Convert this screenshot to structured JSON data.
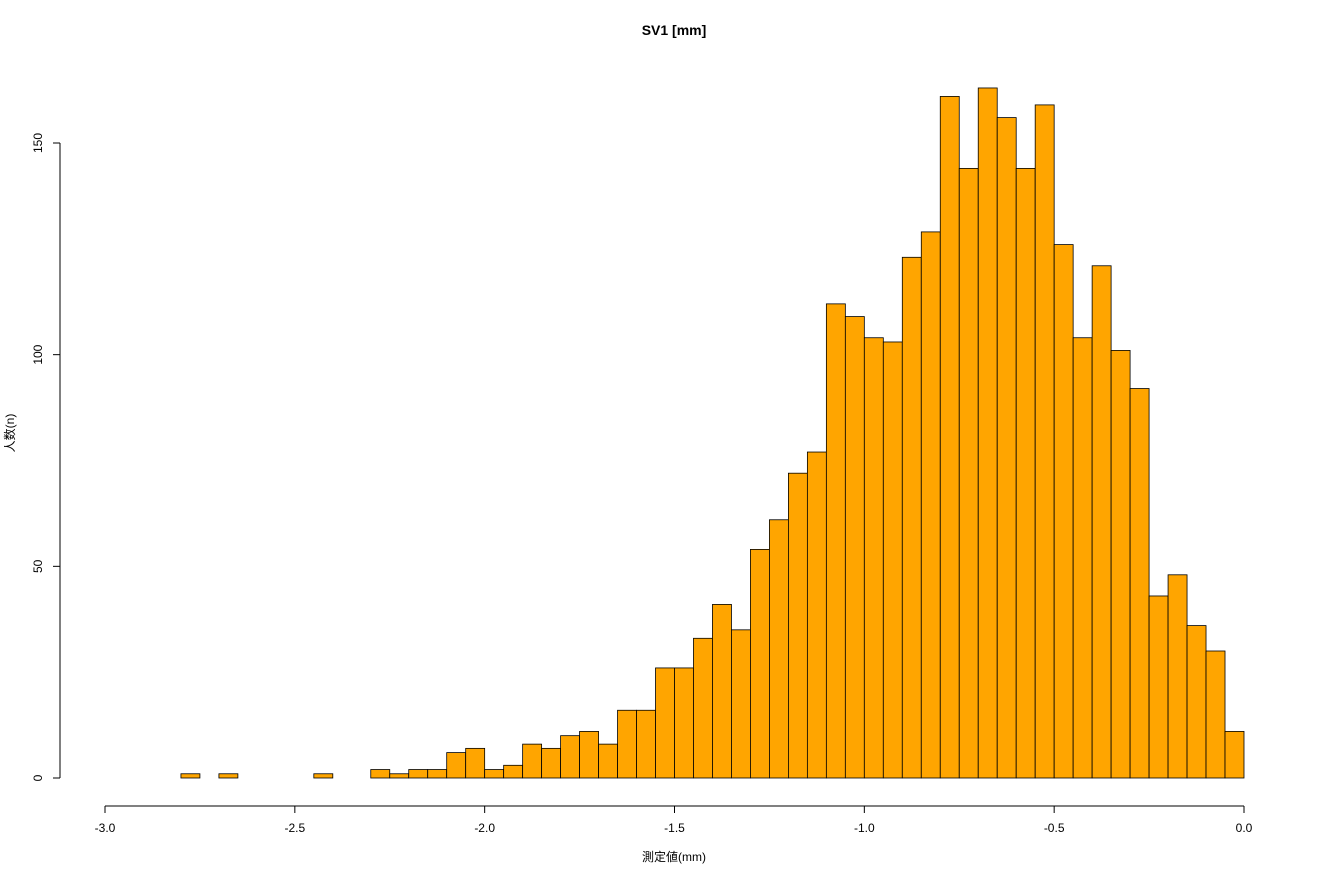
{
  "chart_data": {
    "type": "bar",
    "title": "SV1 [mm]",
    "xlabel": "測定値(mm)",
    "ylabel": "人数(n)",
    "bar_color": "#FFA500",
    "bar_border_color": "#000000",
    "xlim": [
      -3.0,
      0.0
    ],
    "ylim": [
      0,
      165
    ],
    "bin_width": 0.05,
    "bin_start": -2.8,
    "counts": [
      1,
      0,
      1,
      0,
      0,
      0,
      0,
      1,
      0,
      0,
      2,
      1,
      2,
      2,
      6,
      7,
      2,
      3,
      8,
      7,
      10,
      11,
      8,
      16,
      16,
      26,
      26,
      33,
      41,
      35,
      54,
      61,
      72,
      77,
      112,
      109,
      104,
      103,
      123,
      129,
      161,
      144,
      163,
      156,
      144,
      159,
      126,
      104,
      121,
      101,
      92,
      43,
      48,
      36,
      30,
      11
    ],
    "x_ticks": [
      -3.0,
      -2.5,
      -2.0,
      -1.5,
      -1.0,
      -0.5,
      0.0
    ],
    "x_tick_labels": [
      "-3.0",
      "-2.5",
      "-2.0",
      "-1.5",
      "-1.0",
      "-0.5",
      "0.0"
    ],
    "y_ticks": [
      0,
      50,
      100,
      150
    ],
    "y_tick_labels": [
      "0",
      "50",
      "100",
      "150"
    ]
  }
}
